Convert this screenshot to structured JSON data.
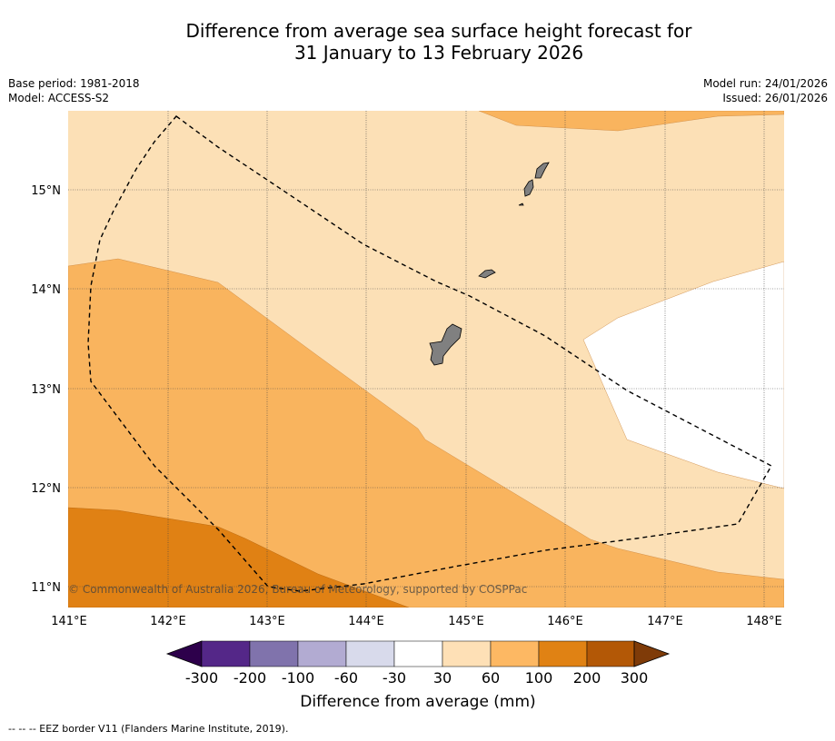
{
  "title": {
    "line1": "Difference from average sea surface height forecast for",
    "line2": "31 January to 13 February 2026"
  },
  "meta_left": {
    "base_period": "Base period: 1981-2018",
    "model": "Model: ACCESS-S2"
  },
  "meta_right": {
    "model_run": "Model run: 24/01/2026",
    "issued": "Issued: 26/01/2026"
  },
  "map": {
    "lat_labels": [
      "15°N",
      "14°N",
      "13°N",
      "12°N",
      "11°N"
    ],
    "lon_labels": [
      "141°E",
      "142°E",
      "143°E",
      "144°E",
      "145°E",
      "146°E",
      "147°E",
      "148°E"
    ],
    "copyright": "© Commonwealth of Australia 2026, Bureau of Meteorology, supported by COSPPac",
    "category_colors": {
      "30_to_60": "#fce0b6",
      "60_to_100": "#f9b45e",
      "100_to_200": "#e08114",
      "minus30_to_30": "#ffffff",
      "land": "#808080"
    }
  },
  "colorbar": {
    "colors": [
      "#2d004b",
      "#542788",
      "#8073ac",
      "#b2abd2",
      "#d8daeb",
      "#ffffff",
      "#fee0b6",
      "#fdb863",
      "#e08214",
      "#b35806",
      "#7f3b08"
    ],
    "tick_labels": [
      "-300",
      "-200",
      "-100",
      "-60",
      "-30",
      "30",
      "60",
      "100",
      "200",
      "300"
    ],
    "label": "Difference from average (mm)"
  },
  "footnote": "-- -- -- EEZ border V11 (Flanders Marine Institute, 2019)."
}
